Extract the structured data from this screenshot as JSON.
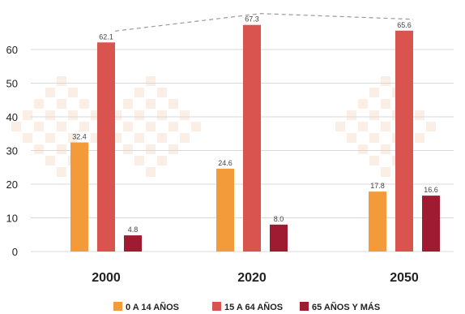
{
  "chart_data": {
    "type": "bar",
    "categories": [
      "2000",
      "2020",
      "2050"
    ],
    "series": [
      {
        "name": "0 A 14 AÑOS",
        "values": [
          32.4,
          24.6,
          17.8
        ],
        "color": "#f39a3a"
      },
      {
        "name": "15 A 64 AÑOS",
        "values": [
          62.1,
          67.3,
          65.6
        ],
        "color": "#d9534f"
      },
      {
        "name": "65 AÑOS Y MÁS",
        "values": [
          4.8,
          8.0,
          16.6
        ],
        "color": "#9e1b32"
      }
    ],
    "title": "",
    "xlabel": "",
    "ylabel": "",
    "ylim": [
      0,
      70
    ],
    "yticks": [
      0,
      10,
      20,
      30,
      40,
      50,
      60
    ],
    "grid": true,
    "legend": "bottom",
    "trend_line": {
      "series": "15 A 64 AÑOS",
      "style": "dashed",
      "color": "#999999"
    }
  }
}
